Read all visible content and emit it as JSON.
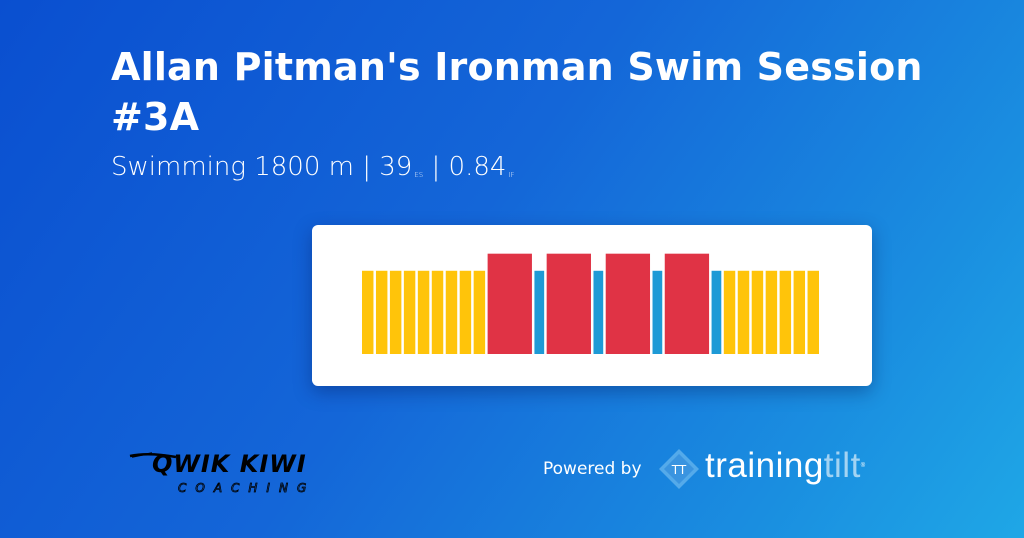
{
  "header": {
    "title": "Allan Pitman's Ironman Swim Session #3A",
    "subtitle_main": "Swimming 1800 m | 39",
    "subtitle_es": "ES",
    "subtitle_sep": " | 0.84",
    "subtitle_if": "IF"
  },
  "workout": {
    "colors": {
      "yellow": "#ffc40a",
      "red": "#e03345",
      "blue": "#1e9ad6"
    },
    "blocks": [
      {
        "kind": "yellow",
        "level": 0.73
      },
      {
        "kind": "yellow",
        "level": 0.73
      },
      {
        "kind": "yellow",
        "level": 0.73
      },
      {
        "kind": "yellow",
        "level": 0.73
      },
      {
        "kind": "yellow",
        "level": 0.73
      },
      {
        "kind": "yellow",
        "level": 0.73
      },
      {
        "kind": "yellow",
        "level": 0.73
      },
      {
        "kind": "yellow",
        "level": 0.73
      },
      {
        "kind": "yellow",
        "level": 0.73
      },
      {
        "kind": "red",
        "level": 0.88
      },
      {
        "kind": "blue",
        "level": 0.73
      },
      {
        "kind": "red",
        "level": 0.88
      },
      {
        "kind": "blue",
        "level": 0.73
      },
      {
        "kind": "red",
        "level": 0.88
      },
      {
        "kind": "blue",
        "level": 0.73
      },
      {
        "kind": "red",
        "level": 0.88
      },
      {
        "kind": "blue",
        "level": 0.73
      },
      {
        "kind": "yellow",
        "level": 0.73
      },
      {
        "kind": "yellow",
        "level": 0.73
      },
      {
        "kind": "yellow",
        "level": 0.73
      },
      {
        "kind": "yellow",
        "level": 0.73
      },
      {
        "kind": "yellow",
        "level": 0.73
      },
      {
        "kind": "yellow",
        "level": 0.73
      },
      {
        "kind": "yellow",
        "level": 0.73
      }
    ]
  },
  "footer": {
    "coach_logo_text": "QWIK KIWI",
    "coach_logo_sub": "COACHING",
    "powered_by": "Powered by",
    "tt_icon_text": "TT",
    "brand_bold": "training",
    "brand_light": "tilt",
    "brand_mark": "®"
  }
}
